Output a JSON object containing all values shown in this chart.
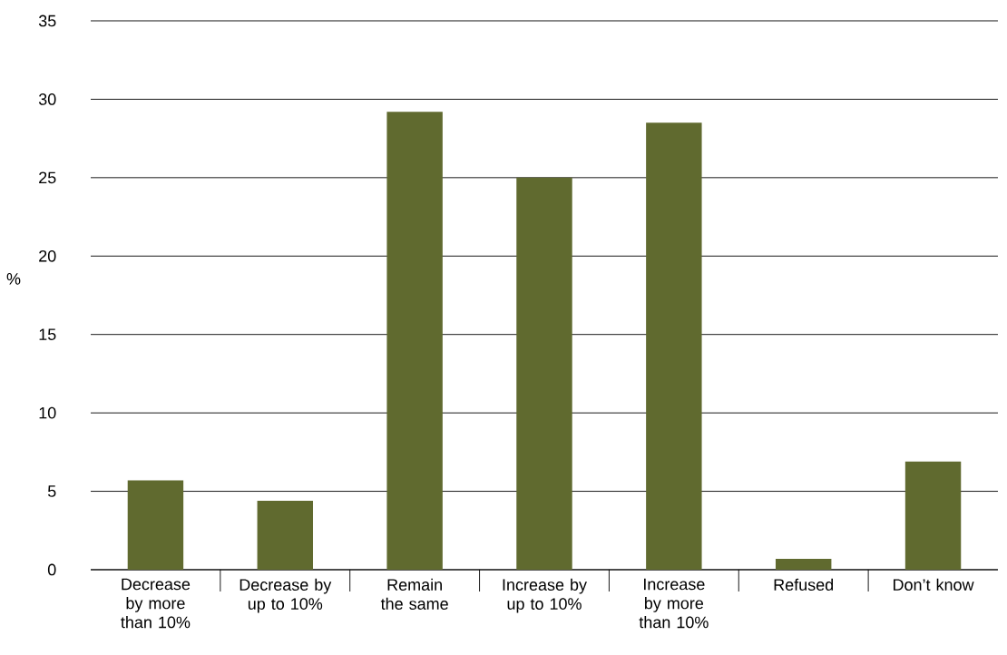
{
  "chart_data": {
    "type": "bar",
    "ylabel": "%",
    "categories": [
      "Decrease by more than 10%",
      "Decrease by up to 10%",
      "Remain the same",
      "Increase by up to 10%",
      "Increase by more than 10%",
      "Refused",
      "Don’t know"
    ],
    "values": [
      5.7,
      4.4,
      29.2,
      25.0,
      28.5,
      0.7,
      6.9
    ],
    "color": "#606a2f",
    "ylim": [
      0,
      35
    ],
    "yticks": [
      0,
      5,
      10,
      15,
      20,
      25,
      30,
      35
    ],
    "grid": "y"
  }
}
